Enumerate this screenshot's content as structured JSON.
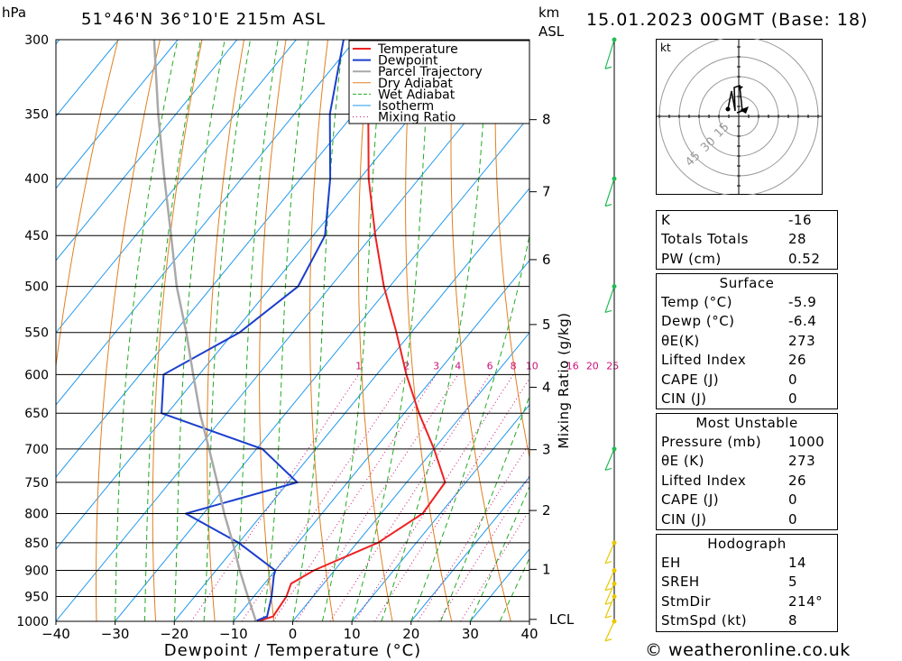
{
  "header": {
    "location": "51°46'N  36°10'E  215m  ASL",
    "datetime": "15.01.2023  00GMT  (Base: 18)",
    "pressure_unit": "hPa",
    "height_unit_km": "km",
    "height_unit_asl": "ASL"
  },
  "footer": {
    "credit": "© weatheronline.co.uk"
  },
  "colors": {
    "temperature": "#ee2222",
    "dewpoint": "#1a3fcc",
    "parcel": "#a9a9a9",
    "dry_adiabat": "#e08020",
    "wet_adiabat": "#22aa22",
    "isotherm": "#2299ee",
    "mixing_ratio": "#cc1177",
    "wind": "#22bb55"
  },
  "chart_data": {
    "type": "line",
    "subtype": "skew-T log-P diagram",
    "xlabel": "Dewpoint / Temperature (°C)",
    "ylabel": "hPa",
    "right_label": "Mixing Ratio (g/kg)",
    "x_ticks": [
      -40,
      -30,
      -20,
      -10,
      0,
      10,
      20,
      30,
      40
    ],
    "xlim": [
      -40,
      40
    ],
    "pressure_levels": [
      300,
      350,
      400,
      450,
      500,
      550,
      600,
      650,
      700,
      750,
      800,
      850,
      900,
      950,
      1000
    ],
    "ylim": [
      1000,
      300
    ],
    "height_km_ticks": [
      {
        "label": "8",
        "p": 354
      },
      {
        "label": "7",
        "p": 411
      },
      {
        "label": "6",
        "p": 473
      },
      {
        "label": "5",
        "p": 541
      },
      {
        "label": "4",
        "p": 616
      },
      {
        "label": "3",
        "p": 701
      },
      {
        "label": "2",
        "p": 795
      },
      {
        "label": "1",
        "p": 898
      },
      {
        "label": "LCL",
        "p": 996
      }
    ],
    "mixing_ratio_labels": [
      "1",
      "2",
      "3",
      "4",
      "6",
      "8",
      "10",
      "16",
      "20",
      "25"
    ],
    "legend": [
      "Temperature",
      "Dewpoint",
      "Parcel Trajectory",
      "Dry Adiabat",
      "Wet Adiabat",
      "Isotherm",
      "Mixing Ratio"
    ],
    "legend_position": "top-right",
    "series": [
      {
        "name": "Temperature",
        "points": [
          [
            1000,
            -5.9
          ],
          [
            990,
            -4.0
          ],
          [
            950,
            -4.5
          ],
          [
            925,
            -5.5
          ],
          [
            900,
            -3.5
          ],
          [
            850,
            3.5
          ],
          [
            800,
            7.0
          ],
          [
            750,
            6.5
          ],
          [
            700,
            0.0
          ],
          [
            650,
            -7.5
          ],
          [
            600,
            -15.0
          ],
          [
            550,
            -22.5
          ],
          [
            500,
            -31.0
          ],
          [
            450,
            -39.5
          ],
          [
            400,
            -48.5
          ],
          [
            350,
            -57.5
          ],
          [
            300,
            -66.0
          ]
        ]
      },
      {
        "name": "Dewpoint",
        "points": [
          [
            1000,
            -6.4
          ],
          [
            990,
            -5.0
          ],
          [
            950,
            -7.0
          ],
          [
            910,
            -9.5
          ],
          [
            900,
            -10.0
          ],
          [
            850,
            -20.0
          ],
          [
            800,
            -33.0
          ],
          [
            750,
            -18.5
          ],
          [
            700,
            -29.0
          ],
          [
            650,
            -51.0
          ],
          [
            600,
            -56.0
          ],
          [
            550,
            -49.0
          ],
          [
            500,
            -45.5
          ],
          [
            450,
            -48.0
          ],
          [
            400,
            -55.0
          ],
          [
            350,
            -64.0
          ],
          [
            300,
            -72.0
          ]
        ]
      },
      {
        "name": "Parcel Trajectory",
        "points": [
          [
            1000,
            -6.2
          ],
          [
            950,
            -11.0
          ],
          [
            900,
            -16.0
          ],
          [
            850,
            -21.0
          ],
          [
            800,
            -26.5
          ],
          [
            750,
            -32.0
          ],
          [
            700,
            -38.0
          ],
          [
            650,
            -44.5
          ],
          [
            600,
            -51.0
          ],
          [
            550,
            -58.0
          ],
          [
            500,
            -66.0
          ],
          [
            450,
            -74.0
          ],
          [
            400,
            -83.0
          ],
          [
            350,
            -93.0
          ],
          [
            300,
            -104.0
          ]
        ]
      }
    ],
    "wind_barbs_kt": [
      {
        "p": 300,
        "spd": 35
      },
      {
        "p": 400,
        "spd": 30
      },
      {
        "p": 500,
        "spd": 25
      },
      {
        "p": 700,
        "spd": 10
      },
      {
        "p": 850,
        "spd": 8
      },
      {
        "p": 900,
        "spd": 6
      },
      {
        "p": 925,
        "spd": 8
      },
      {
        "p": 950,
        "spd": 10
      },
      {
        "p": 1000,
        "spd": 5
      }
    ],
    "hodograph": {
      "unit": "kt",
      "rings": [
        "15",
        "30",
        "45"
      ]
    }
  },
  "indices": [
    {
      "label": "K",
      "value": "-16"
    },
    {
      "label": "Totals Totals",
      "value": "28"
    },
    {
      "label": "PW (cm)",
      "value": "0.52"
    }
  ],
  "surface": {
    "title": "Surface",
    "rows": [
      {
        "label": "Temp (°C)",
        "value": "-5.9"
      },
      {
        "label": "Dewp (°C)",
        "value": "-6.4"
      },
      {
        "label": "θE(K)",
        "value": "273"
      },
      {
        "label": "Lifted Index",
        "value": "26"
      },
      {
        "label": "CAPE (J)",
        "value": "0"
      },
      {
        "label": "CIN (J)",
        "value": "0"
      }
    ]
  },
  "most_unstable": {
    "title": "Most Unstable",
    "rows": [
      {
        "label": "Pressure (mb)",
        "value": "1000"
      },
      {
        "label": "θE (K)",
        "value": "273"
      },
      {
        "label": "Lifted Index",
        "value": "26"
      },
      {
        "label": "CAPE (J)",
        "value": "0"
      },
      {
        "label": "CIN (J)",
        "value": "0"
      }
    ]
  },
  "hodograph_table": {
    "title": "Hodograph",
    "rows": [
      {
        "label": "EH",
        "value": "14"
      },
      {
        "label": "SREH",
        "value": "5"
      },
      {
        "label": "StmDir",
        "value": "214°"
      },
      {
        "label": "StmSpd (kt)",
        "value": "8"
      }
    ]
  }
}
